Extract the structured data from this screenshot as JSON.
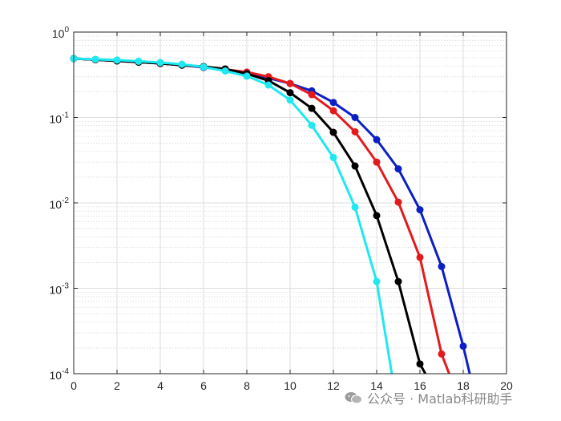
{
  "chart_data": {
    "type": "line",
    "title": "",
    "xlabel": "",
    "ylabel": "",
    "xlim": [
      0,
      20
    ],
    "ylim": [
      0.0001,
      1
    ],
    "yscale": "log",
    "grid": true,
    "minor_grid": true,
    "x_ticks": [
      "0",
      "2",
      "4",
      "6",
      "8",
      "10",
      "12",
      "14",
      "16",
      "18",
      "20"
    ],
    "y_ticks": [
      {
        "base": "10",
        "exp": "0",
        "value": 1
      },
      {
        "base": "10",
        "exp": "-1",
        "value": 0.1
      },
      {
        "base": "10",
        "exp": "-2",
        "value": 0.01
      },
      {
        "base": "10",
        "exp": "-3",
        "value": 0.001
      },
      {
        "base": "10",
        "exp": "-4",
        "value": 0.0001
      }
    ],
    "series": [
      {
        "name": "blue",
        "color": "#0b1fc4",
        "x": [
          0,
          1,
          2,
          3,
          4,
          5,
          6,
          7,
          8,
          9,
          10,
          11,
          12,
          13,
          14,
          15,
          16,
          17,
          18,
          18.3
        ],
        "values": [
          0.49,
          0.475,
          0.46,
          0.445,
          0.43,
          0.41,
          0.385,
          0.365,
          0.335,
          0.29,
          0.25,
          0.205,
          0.15,
          0.1,
          0.055,
          0.025,
          0.0083,
          0.0018,
          0.00021,
          0.0001
        ]
      },
      {
        "name": "red",
        "color": "#e31a1c",
        "x": [
          0,
          1,
          2,
          3,
          4,
          5,
          6,
          7,
          8,
          9,
          10,
          11,
          12,
          13,
          14,
          15,
          16,
          17,
          17.35
        ],
        "values": [
          0.49,
          0.475,
          0.46,
          0.445,
          0.43,
          0.41,
          0.39,
          0.365,
          0.34,
          0.3,
          0.25,
          0.185,
          0.12,
          0.068,
          0.03,
          0.0102,
          0.0023,
          0.00017,
          0.0001
        ]
      },
      {
        "name": "black",
        "color": "#000000",
        "x": [
          0,
          1,
          2,
          3,
          4,
          5,
          6,
          7,
          8,
          9,
          10,
          11,
          12,
          13,
          14,
          15,
          16,
          16.25
        ],
        "values": [
          0.49,
          0.475,
          0.46,
          0.445,
          0.43,
          0.41,
          0.395,
          0.37,
          0.325,
          0.27,
          0.195,
          0.128,
          0.067,
          0.027,
          0.0071,
          0.0012,
          0.00013,
          0.0001
        ]
      },
      {
        "name": "cyan",
        "color": "#1ee8f0",
        "x": [
          0,
          1,
          2,
          3,
          4,
          5,
          6,
          7,
          8,
          9,
          10,
          11,
          12,
          13,
          14,
          14.7
        ],
        "values": [
          0.49,
          0.48,
          0.47,
          0.455,
          0.44,
          0.42,
          0.39,
          0.35,
          0.305,
          0.24,
          0.16,
          0.081,
          0.034,
          0.0089,
          0.0012,
          0.0001
        ]
      }
    ]
  },
  "watermark": {
    "text": "公众号 · Matlab科研助手",
    "icon": "wechat-icon"
  }
}
